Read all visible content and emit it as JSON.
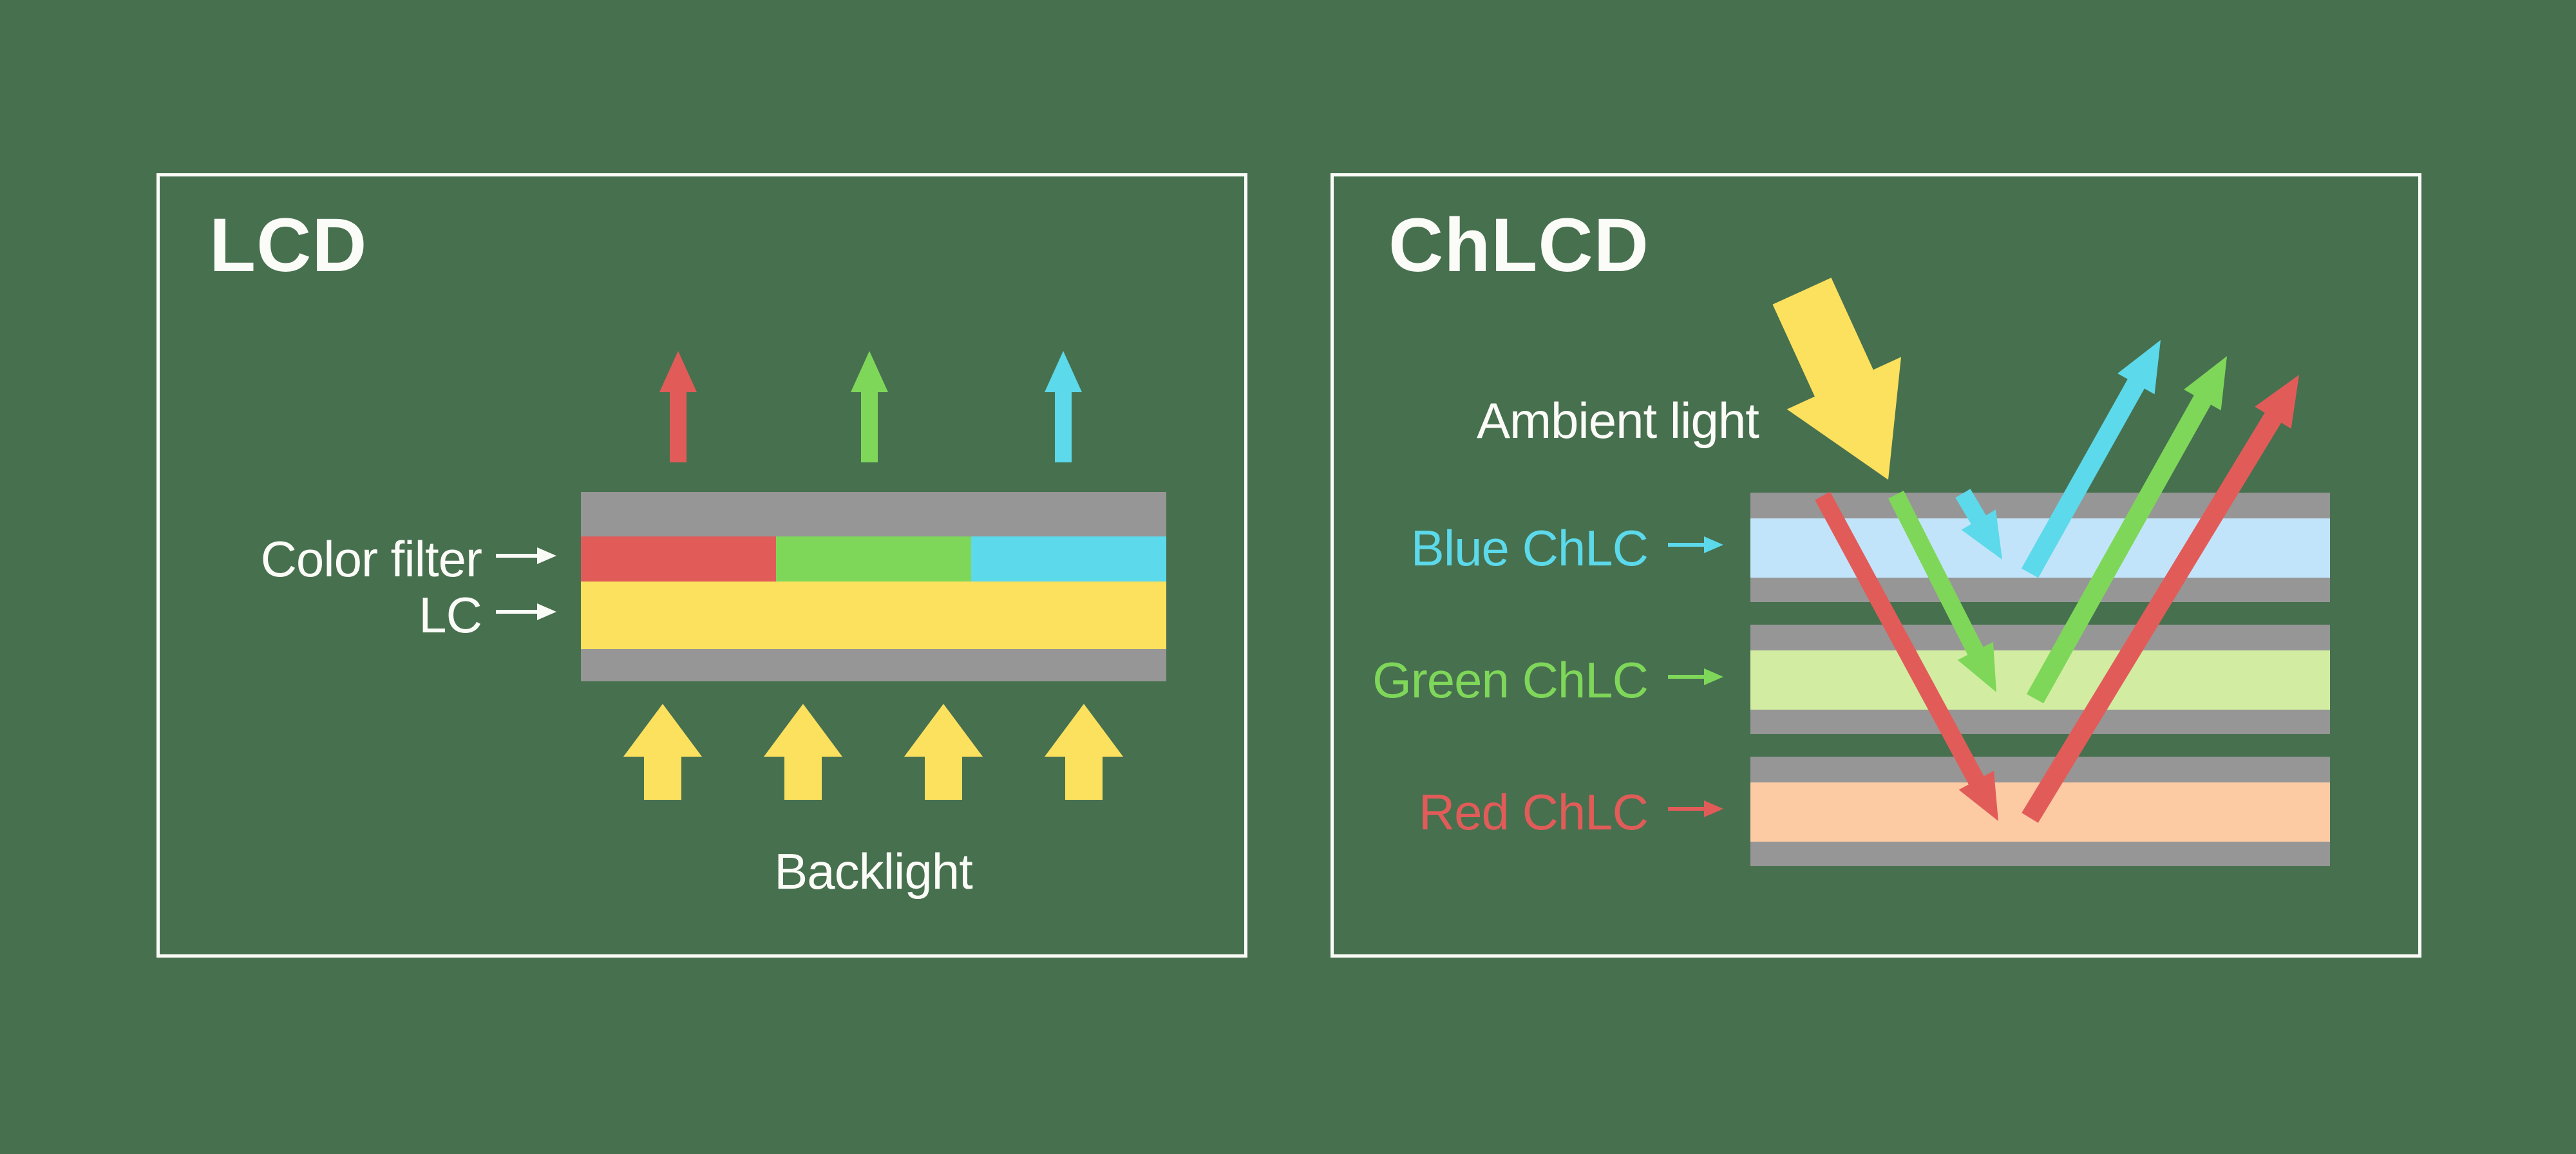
{
  "lcd_panel": {
    "title": "LCD",
    "color_filter_label": "Color filter",
    "lc_label": "LC",
    "backlight_label": "Backlight"
  },
  "chlcd_panel": {
    "title": "ChLCD",
    "ambient_label": "Ambient light",
    "blue_label": "Blue ChLC",
    "green_label": "Green ChLC",
    "red_label": "Red ChLC"
  },
  "colors": {
    "bg": "#47704F",
    "white": "#FBFBF7",
    "gray": "#969696",
    "red": "#E15C59",
    "green": "#7FD75A",
    "cyan": "#5CD9EA",
    "yellow": "#FCE15E",
    "light_blue": "#C2E4FA",
    "light_green": "#D2EDA2",
    "peach": "#FCCBA4"
  }
}
